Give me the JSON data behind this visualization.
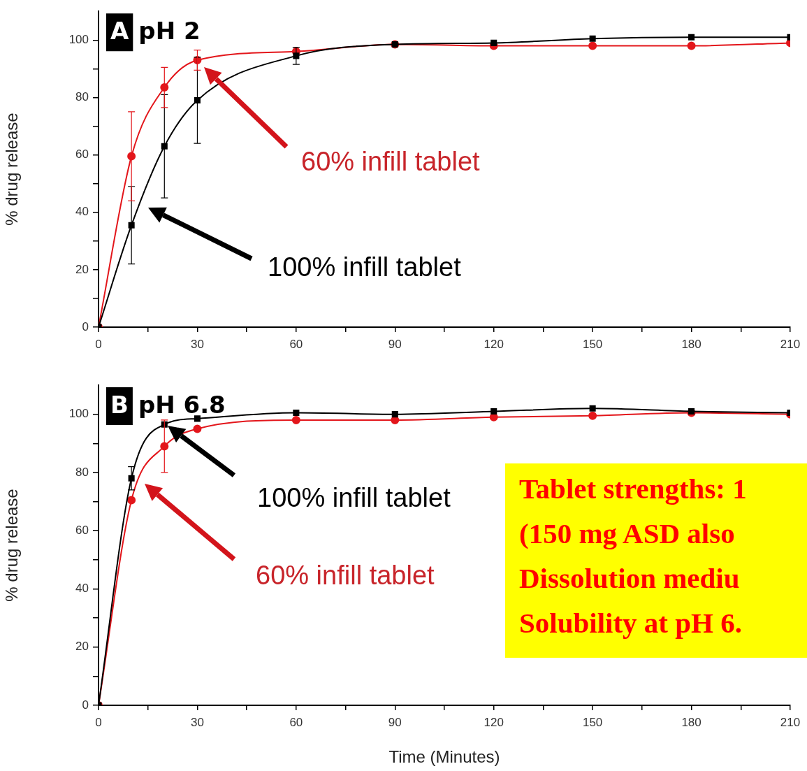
{
  "chart_data": [
    {
      "type": "line",
      "title": "pH 2",
      "ylabel": "% drug release",
      "x": [
        0,
        10,
        20,
        30,
        60,
        90,
        120,
        150,
        180,
        210
      ],
      "xlim": [
        0,
        210
      ],
      "ylim": [
        0,
        110
      ],
      "xticks": [
        0,
        {
          "value": 15,
          "label": null
        },
        30,
        {
          "value": 45,
          "label": null
        },
        60,
        {
          "value": 75,
          "label": null
        },
        90,
        {
          "value": 105,
          "label": null
        },
        120,
        {
          "value": 135,
          "label": null
        },
        150,
        {
          "value": 165,
          "label": null
        },
        180,
        {
          "value": 195,
          "label": null
        },
        210
      ],
      "yticks": [
        0,
        {
          "value": 10,
          "label": null
        },
        20,
        {
          "value": 30,
          "label": null
        },
        40,
        {
          "value": 50,
          "label": null
        },
        60,
        {
          "value": 70,
          "label": null
        },
        80,
        {
          "value": 90,
          "label": null
        },
        100
      ],
      "grid": false,
      "legend": false,
      "series": [
        {
          "color": "#000000",
          "marker": "square",
          "values": [
            0,
            35.5,
            63,
            79,
            94.5,
            98.5,
            99,
            100.5,
            101,
            101
          ],
          "errors": [
            null,
            13.5,
            18,
            15,
            3,
            null,
            null,
            null,
            null,
            null
          ]
        },
        {
          "color": "#e3161b",
          "marker": "circle",
          "values": [
            0,
            59.5,
            83.5,
            93,
            96,
            98.5,
            98,
            98,
            98,
            99
          ],
          "errors": [
            null,
            15.5,
            7,
            3.5,
            null,
            null,
            null,
            null,
            null,
            null
          ]
        }
      ],
      "annotations": [
        "A",
        "60% infill tablet",
        "100% infill tablet"
      ]
    },
    {
      "type": "line",
      "title": "pH 6.8",
      "xlabel": "Time (Minutes)",
      "ylabel": "% drug release",
      "x": [
        0,
        10,
        20,
        30,
        60,
        90,
        120,
        150,
        180,
        210
      ],
      "xlim": [
        0,
        210
      ],
      "ylim": [
        0,
        110
      ],
      "xticks": [
        0,
        {
          "value": 15,
          "label": null
        },
        30,
        {
          "value": 45,
          "label": null
        },
        60,
        {
          "value": 75,
          "label": null
        },
        90,
        {
          "value": 105,
          "label": null
        },
        120,
        {
          "value": 135,
          "label": null
        },
        150,
        {
          "value": 165,
          "label": null
        },
        180,
        {
          "value": 195,
          "label": null
        },
        210
      ],
      "yticks": [
        0,
        {
          "value": 10,
          "label": null
        },
        20,
        {
          "value": 30,
          "label": null
        },
        40,
        {
          "value": 50,
          "label": null
        },
        60,
        {
          "value": 70,
          "label": null
        },
        80,
        {
          "value": 90,
          "label": null
        },
        100
      ],
      "grid": false,
      "legend": false,
      "series": [
        {
          "color": "#000000",
          "marker": "square",
          "values": [
            0,
            78,
            96.5,
            98.5,
            100.5,
            100,
            101,
            102,
            101,
            100.5
          ],
          "errors": [
            null,
            4,
            null,
            null,
            null,
            null,
            null,
            null,
            null,
            null
          ]
        },
        {
          "color": "#e3161b",
          "marker": "circle",
          "values": [
            0,
            70.5,
            89,
            95,
            98,
            98,
            99,
            99.5,
            100.5,
            100
          ],
          "errors": [
            null,
            null,
            9,
            null,
            null,
            null,
            null,
            null,
            null,
            null
          ]
        }
      ],
      "annotations": [
        "B",
        "100% infill tablet",
        "60% infill tablet",
        "Tablet strengths: 1\n(150 mg ASD also\nDissolution mediu\nSolubility at pH 6."
      ]
    }
  ]
}
